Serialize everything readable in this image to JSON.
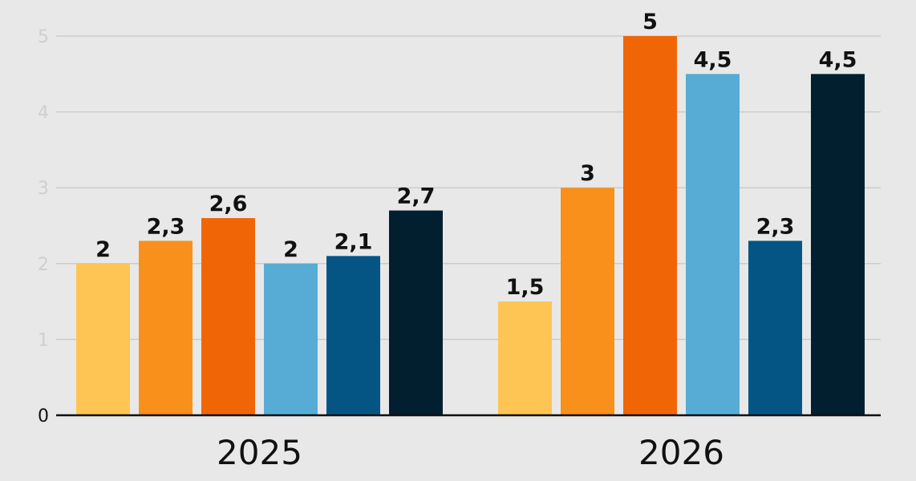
{
  "chart_data": {
    "type": "bar",
    "categories": [
      "2025",
      "2026"
    ],
    "series": [
      {
        "color": "#fec554",
        "values": [
          2,
          1.5
        ]
      },
      {
        "color": "#f8901b",
        "values": [
          2.3,
          3
        ]
      },
      {
        "color": "#f06607",
        "values": [
          2.6,
          5
        ]
      },
      {
        "color": "#56acd5",
        "values": [
          2,
          4.5
        ]
      },
      {
        "color": "#045584",
        "values": [
          2.1,
          2.3
        ]
      },
      {
        "color": "#021f30",
        "values": [
          2.7,
          4.5
        ]
      }
    ],
    "value_labels": [
      [
        "2",
        "2,3",
        "2,6",
        "2",
        "2,1",
        "2,7"
      ],
      [
        "1,5",
        "3",
        "5",
        "4,5",
        "2,3",
        "4,5"
      ]
    ],
    "y_ticks": [
      "0",
      "1",
      "2",
      "3",
      "4",
      "5"
    ],
    "ylim": [
      0,
      5
    ],
    "grid": true,
    "legend": "none",
    "title": "",
    "xlabel": "",
    "ylabel": ""
  }
}
